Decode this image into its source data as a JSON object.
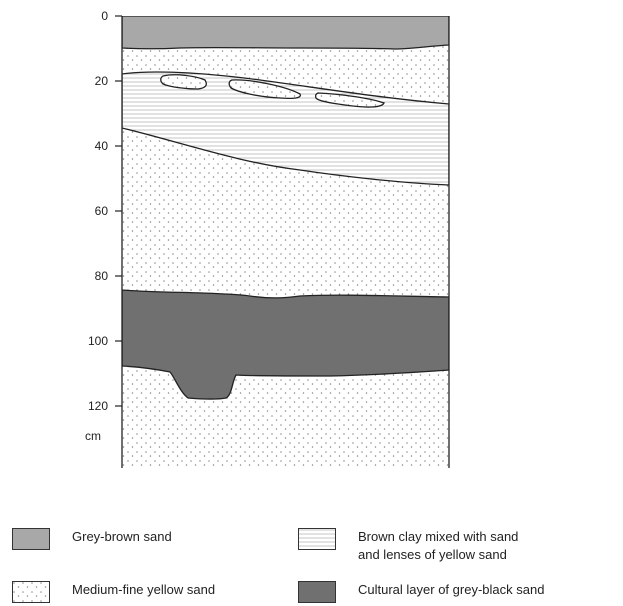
{
  "depth_axis": {
    "ticks": [
      {
        "value": 0,
        "label": "0"
      },
      {
        "value": 20,
        "label": "20"
      },
      {
        "value": 40,
        "label": "40"
      },
      {
        "value": 60,
        "label": "60"
      },
      {
        "value": 80,
        "label": "80"
      },
      {
        "value": 100,
        "label": "100"
      },
      {
        "value": 120,
        "label": "120"
      }
    ],
    "unit": "cm"
  },
  "legend": [
    {
      "id": "grey-brown-sand",
      "lines": [
        "Grey-brown sand"
      ],
      "fill": "#a8a8a8",
      "pattern": "solid"
    },
    {
      "id": "brown-clay",
      "lines": [
        "Brown clay mixed with sand",
        "and lenses of yellow sand"
      ],
      "fill": "#ffffff",
      "pattern": "horizontal-lines"
    },
    {
      "id": "yellow-sand",
      "lines": [
        "Medium-fine yellow sand"
      ],
      "fill": "#ffffff",
      "pattern": "dots"
    },
    {
      "id": "cultural-layer",
      "lines": [
        "Cultural layer of grey-black sand"
      ],
      "fill": "#707070",
      "pattern": "solid"
    }
  ]
}
